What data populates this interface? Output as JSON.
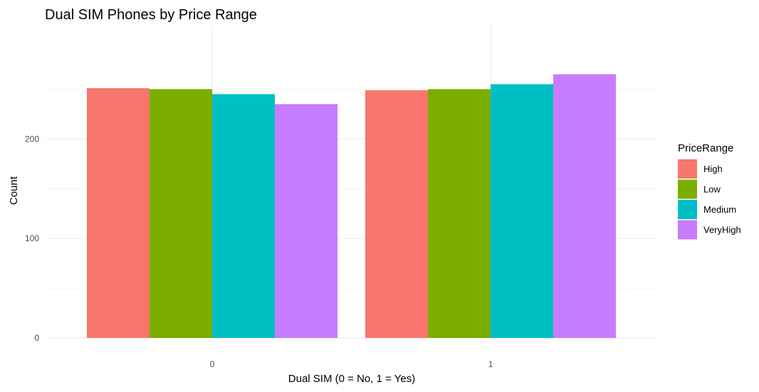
{
  "chart_data": {
    "type": "bar",
    "title": "Dual SIM Phones by Price Range",
    "xlabel": "Dual SIM (0 = No, 1 = Yes)",
    "ylabel": "Count",
    "categories": [
      "0",
      "1"
    ],
    "series": [
      {
        "name": "High",
        "values": [
          251,
          249
        ],
        "color": "#F8766D"
      },
      {
        "name": "Low",
        "values": [
          250,
          250
        ],
        "color": "#7CAE00"
      },
      {
        "name": "Medium",
        "values": [
          245,
          255
        ],
        "color": "#00BFC4"
      },
      {
        "name": "VeryHigh",
        "values": [
          235,
          265
        ],
        "color": "#C77CFF"
      }
    ],
    "ylim": [
      0,
      270
    ],
    "yticks": [
      0,
      100,
      200
    ],
    "grid": true,
    "legend": {
      "title": "PriceRange",
      "position": "right"
    }
  }
}
